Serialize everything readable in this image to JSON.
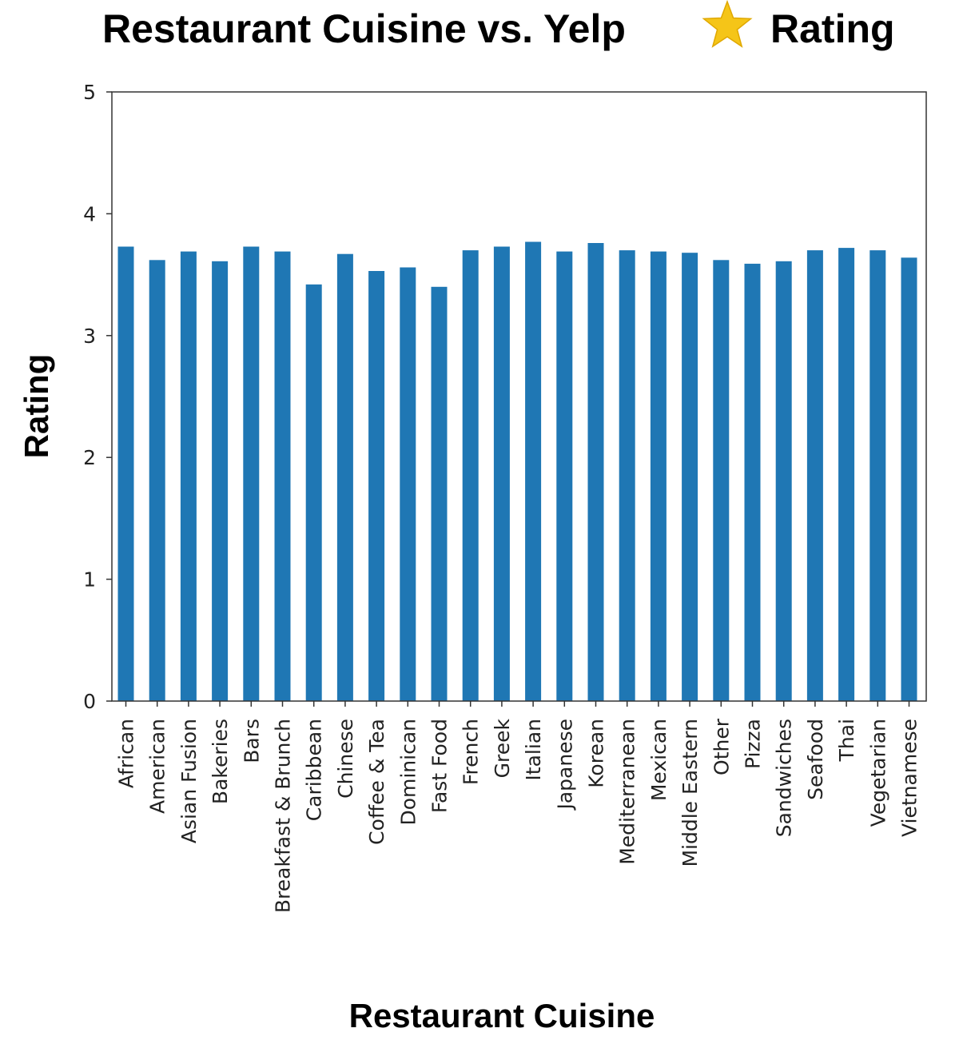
{
  "chart_data": {
    "type": "bar",
    "title": "Restaurant Cuisine vs. Yelp",
    "title_icon": "star-icon",
    "title_suffix": "Rating",
    "xlabel": "Restaurant Cuisine",
    "ylabel": "Rating",
    "ylim": [
      0,
      5
    ],
    "yticks": [
      0,
      1,
      2,
      3,
      4,
      5
    ],
    "grid": false,
    "legend": "none",
    "bar_color": "#1f77b4",
    "star_color": "#f5c518",
    "categories": [
      "African",
      "American",
      "Asian Fusion",
      "Bakeries",
      "Bars",
      "Breakfast & Brunch",
      "Caribbean",
      "Chinese",
      "Coffee & Tea",
      "Dominican",
      "Fast Food",
      "French",
      "Greek",
      "Italian",
      "Japanese",
      "Korean",
      "Mediterranean",
      "Mexican",
      "Middle Eastern",
      "Other",
      "Pizza",
      "Sandwiches",
      "Seafood",
      "Thai",
      "Vegetarian",
      "Vietnamese"
    ],
    "values": [
      3.73,
      3.62,
      3.69,
      3.61,
      3.73,
      3.69,
      3.42,
      3.67,
      3.53,
      3.56,
      3.4,
      3.7,
      3.73,
      3.77,
      3.69,
      3.76,
      3.7,
      3.69,
      3.68,
      3.62,
      3.59,
      3.61,
      3.7,
      3.72,
      3.7,
      3.64
    ]
  }
}
